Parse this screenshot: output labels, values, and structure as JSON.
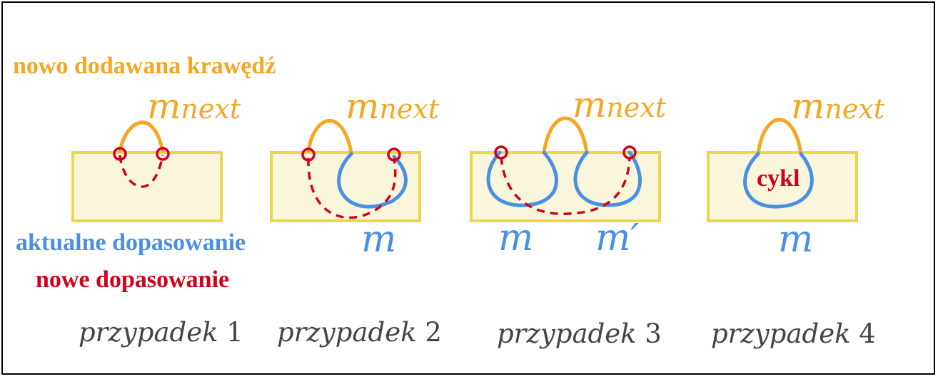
{
  "legend": {
    "new_edge": "nowo dodawana krawędź",
    "current_matching": "aktualne dopasowanie",
    "new_matching": "nowe dopasowanie"
  },
  "labels": {
    "m_base": "m",
    "m_subscript": "next",
    "m": "m",
    "m_prime": "m′",
    "cycle": "cykl"
  },
  "cases": [
    {
      "word": "przypadek",
      "number": "1"
    },
    {
      "word": "przypadek",
      "number": "2"
    },
    {
      "word": "przypadek",
      "number": "3"
    },
    {
      "word": "przypadek",
      "number": "4"
    }
  ],
  "colors": {
    "new_edge": "#f5a623",
    "current_matching": "#4a90e2",
    "new_matching": "#d0021b",
    "box_fill": "#faf6dc",
    "box_stroke": "#e8d84a",
    "case_text": "#444444"
  }
}
